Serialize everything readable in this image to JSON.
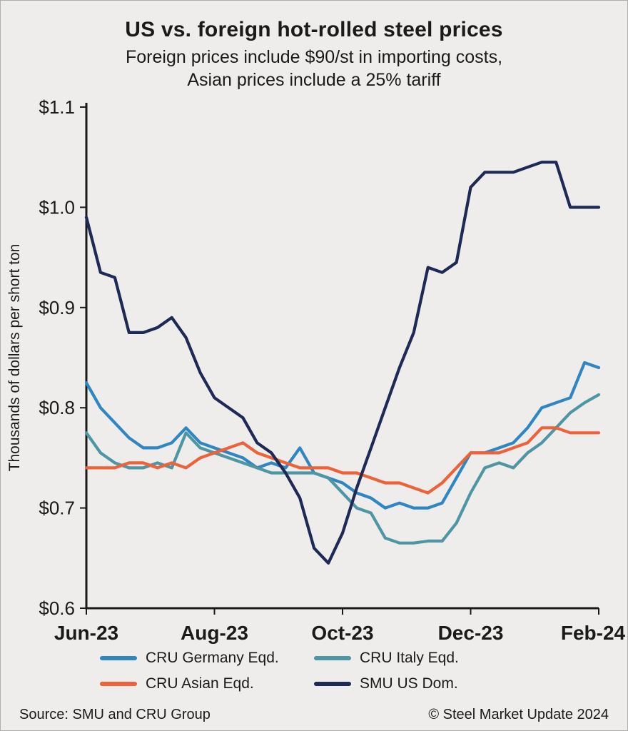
{
  "title": "US vs. foreign hot-rolled steel prices",
  "subtitle_line1": "Foreign prices include $90/st in importing costs,",
  "subtitle_line2": "Asian prices include a 25% tariff",
  "footer": {
    "source": "Source: SMU and CRU Group",
    "copyright": "© Steel Market Update 2024"
  },
  "chart_data": {
    "type": "line",
    "title": "US vs. foreign hot-rolled steel prices",
    "xlabel": "",
    "ylabel": "Thousands of dollars per short ton",
    "ylim": [
      0.6,
      1.1
    ],
    "grid": false,
    "legend_position": "bottom",
    "x_tick_labels": [
      "Jun-23",
      "Aug-23",
      "Oct-23",
      "Dec-23",
      "Feb-24"
    ],
    "y_ticks": [
      0.6,
      0.7,
      0.8,
      0.9,
      1.0,
      1.1
    ],
    "y_tick_labels": [
      "$0.6",
      "$0.7",
      "$0.8",
      "$0.9",
      "$1.0",
      "$1.1"
    ],
    "x_unit": "weekly observations from Jun-2023 to Feb-2024",
    "series": [
      {
        "name": "CRU Germany Eqd.",
        "color": "#2e86c3",
        "values": [
          0.825,
          0.8,
          0.785,
          0.77,
          0.76,
          0.76,
          0.765,
          0.78,
          0.765,
          0.76,
          0.755,
          0.75,
          0.74,
          0.745,
          0.74,
          0.76,
          0.735,
          0.73,
          0.725,
          0.715,
          0.71,
          0.7,
          0.705,
          0.7,
          0.7,
          0.705,
          0.73,
          0.755,
          0.755,
          0.76,
          0.765,
          0.78,
          0.8,
          0.805,
          0.81,
          0.845,
          0.84
        ]
      },
      {
        "name": "CRU Italy Eqd.",
        "color": "#4f96a4",
        "values": [
          0.775,
          0.755,
          0.745,
          0.74,
          0.74,
          0.745,
          0.74,
          0.775,
          0.76,
          0.755,
          0.75,
          0.745,
          0.74,
          0.735,
          0.735,
          0.735,
          0.735,
          0.73,
          0.715,
          0.7,
          0.695,
          0.67,
          0.665,
          0.665,
          0.667,
          0.667,
          0.685,
          0.715,
          0.74,
          0.745,
          0.74,
          0.755,
          0.765,
          0.78,
          0.795,
          0.805,
          0.813
        ]
      },
      {
        "name": "CRU Asian Eqd.",
        "color": "#ed6238",
        "values": [
          0.74,
          0.74,
          0.74,
          0.745,
          0.745,
          0.74,
          0.745,
          0.74,
          0.75,
          0.755,
          0.76,
          0.765,
          0.755,
          0.75,
          0.745,
          0.74,
          0.74,
          0.74,
          0.735,
          0.735,
          0.73,
          0.725,
          0.725,
          0.72,
          0.715,
          0.725,
          0.74,
          0.755,
          0.755,
          0.755,
          0.76,
          0.765,
          0.78,
          0.78,
          0.775,
          0.775,
          0.775
        ]
      },
      {
        "name": "SMU US Dom.",
        "color": "#1e2a55",
        "values": [
          0.99,
          0.935,
          0.93,
          0.875,
          0.875,
          0.88,
          0.89,
          0.87,
          0.835,
          0.81,
          0.8,
          0.79,
          0.765,
          0.755,
          0.735,
          0.71,
          0.66,
          0.645,
          0.675,
          0.72,
          0.76,
          0.8,
          0.84,
          0.875,
          0.94,
          0.935,
          0.945,
          1.02,
          1.035,
          1.035,
          1.035,
          1.04,
          1.045,
          1.045,
          1.0,
          1.0,
          1.0
        ]
      }
    ]
  }
}
